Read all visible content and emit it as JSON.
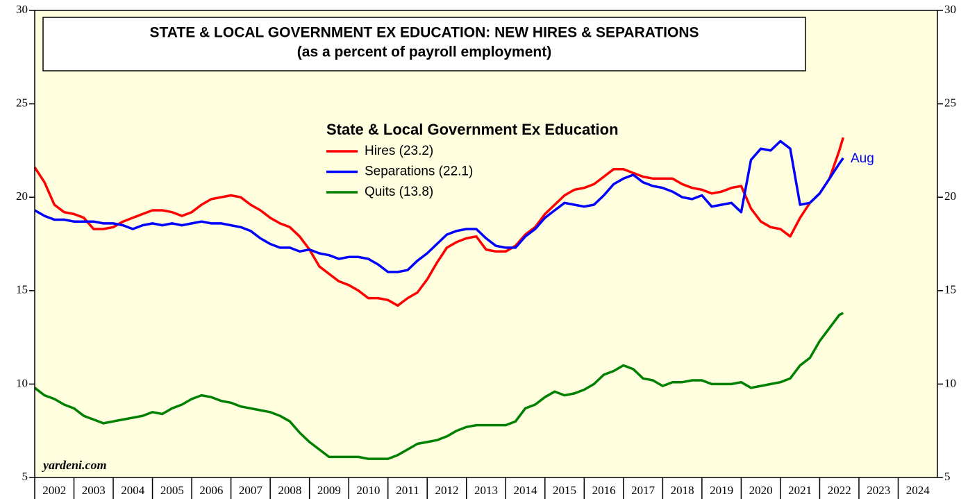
{
  "chart_data": {
    "type": "line",
    "title": "STATE & LOCAL GOVERNMENT EX EDUCATION: NEW HIRES & SEPARATIONS",
    "subtitle": "(as a percent of payroll employment)",
    "legend_title": "State & Local Government Ex Education",
    "annotations": [
      "Aug",
      "yardeni.com"
    ],
    "x": [
      2002,
      2002.25,
      2002.5,
      2002.75,
      2003,
      2003.25,
      2003.5,
      2003.75,
      2004,
      2004.25,
      2004.5,
      2004.75,
      2005,
      2005.25,
      2005.5,
      2005.75,
      2006,
      2006.25,
      2006.5,
      2006.75,
      2007,
      2007.25,
      2007.5,
      2007.75,
      2008,
      2008.25,
      2008.5,
      2008.75,
      2009,
      2009.25,
      2009.5,
      2009.75,
      2010,
      2010.25,
      2010.5,
      2010.75,
      2011,
      2011.25,
      2011.5,
      2011.75,
      2012,
      2012.25,
      2012.5,
      2012.75,
      2013,
      2013.25,
      2013.5,
      2013.75,
      2014,
      2014.25,
      2014.5,
      2014.75,
      2015,
      2015.25,
      2015.5,
      2015.75,
      2016,
      2016.25,
      2016.5,
      2016.75,
      2017,
      2017.25,
      2017.5,
      2017.75,
      2018,
      2018.25,
      2018.5,
      2018.75,
      2019,
      2019.25,
      2019.5,
      2019.75,
      2020,
      2020.25,
      2020.5,
      2020.75,
      2021,
      2021.25,
      2021.5,
      2021.75,
      2022,
      2022.25,
      2022.5,
      2022.6
    ],
    "series": [
      {
        "name": "Hires (23.2)",
        "color": "#ff0000",
        "values": [
          21.6,
          20.8,
          19.6,
          19.2,
          19.1,
          18.9,
          18.3,
          18.3,
          18.4,
          18.7,
          18.9,
          19.1,
          19.3,
          19.3,
          19.2,
          19.0,
          19.2,
          19.6,
          19.9,
          20.0,
          20.1,
          20.0,
          19.6,
          19.3,
          18.9,
          18.6,
          18.4,
          17.9,
          17.2,
          16.3,
          15.9,
          15.5,
          15.3,
          15.0,
          14.6,
          14.6,
          14.5,
          14.2,
          14.6,
          14.9,
          15.6,
          16.5,
          17.3,
          17.6,
          17.8,
          17.9,
          17.2,
          17.1,
          17.1,
          17.4,
          18.0,
          18.4,
          19.1,
          19.6,
          20.1,
          20.4,
          20.5,
          20.7,
          21.1,
          21.5,
          21.5,
          21.3,
          21.1,
          21.0,
          21.0,
          21.0,
          20.7,
          20.5,
          20.4,
          20.2,
          20.3,
          20.5,
          20.6,
          19.4,
          18.7,
          18.4,
          18.3,
          17.9,
          18.9,
          19.7,
          20.2,
          21.0,
          22.5,
          23.2
        ]
      },
      {
        "name": "Separations (22.1)",
        "color": "#0000ff",
        "values": [
          19.3,
          19.0,
          18.8,
          18.8,
          18.7,
          18.7,
          18.7,
          18.6,
          18.6,
          18.5,
          18.3,
          18.5,
          18.6,
          18.5,
          18.6,
          18.5,
          18.6,
          18.7,
          18.6,
          18.6,
          18.5,
          18.4,
          18.2,
          17.8,
          17.5,
          17.3,
          17.3,
          17.1,
          17.2,
          17.0,
          16.9,
          16.7,
          16.8,
          16.8,
          16.7,
          16.4,
          16.0,
          16.0,
          16.1,
          16.6,
          17.0,
          17.5,
          18.0,
          18.2,
          18.3,
          18.3,
          17.8,
          17.4,
          17.3,
          17.3,
          17.9,
          18.3,
          18.9,
          19.3,
          19.7,
          19.6,
          19.5,
          19.6,
          20.1,
          20.7,
          21.0,
          21.2,
          20.8,
          20.6,
          20.5,
          20.3,
          20.0,
          19.9,
          20.1,
          19.5,
          19.6,
          19.7,
          19.2,
          22.0,
          22.6,
          22.5,
          23.0,
          22.6,
          19.6,
          19.7,
          20.2,
          21.0,
          21.8,
          22.1
        ]
      },
      {
        "name": "Quits (13.8)",
        "color": "#008000",
        "values": [
          9.8,
          9.4,
          9.2,
          8.9,
          8.7,
          8.3,
          8.1,
          7.9,
          8.0,
          8.1,
          8.2,
          8.3,
          8.5,
          8.4,
          8.7,
          8.9,
          9.2,
          9.4,
          9.3,
          9.1,
          9.0,
          8.8,
          8.7,
          8.6,
          8.5,
          8.3,
          8.0,
          7.4,
          6.9,
          6.5,
          6.1,
          6.1,
          6.1,
          6.1,
          6.0,
          6.0,
          6.0,
          6.2,
          6.5,
          6.8,
          6.9,
          7.0,
          7.2,
          7.5,
          7.7,
          7.8,
          7.8,
          7.8,
          7.8,
          8.0,
          8.7,
          8.9,
          9.3,
          9.6,
          9.4,
          9.5,
          9.7,
          10.0,
          10.5,
          10.7,
          11.0,
          10.8,
          10.3,
          10.2,
          9.9,
          10.1,
          10.1,
          10.2,
          10.2,
          10.0,
          10.0,
          10.0,
          10.1,
          9.8,
          9.9,
          10.0,
          10.1,
          10.3,
          11.0,
          11.4,
          12.3,
          13.0,
          13.7,
          13.8
        ]
      }
    ],
    "xlim": [
      2002,
      2025
    ],
    "xticks": [
      2002,
      2003,
      2004,
      2005,
      2006,
      2007,
      2008,
      2009,
      2010,
      2011,
      2012,
      2013,
      2014,
      2015,
      2016,
      2017,
      2018,
      2019,
      2020,
      2021,
      2022,
      2023,
      2024
    ],
    "ylim": [
      5,
      30
    ],
    "yticks": [
      5,
      10,
      15,
      20,
      25,
      30
    ],
    "background": "#ffffe0"
  }
}
